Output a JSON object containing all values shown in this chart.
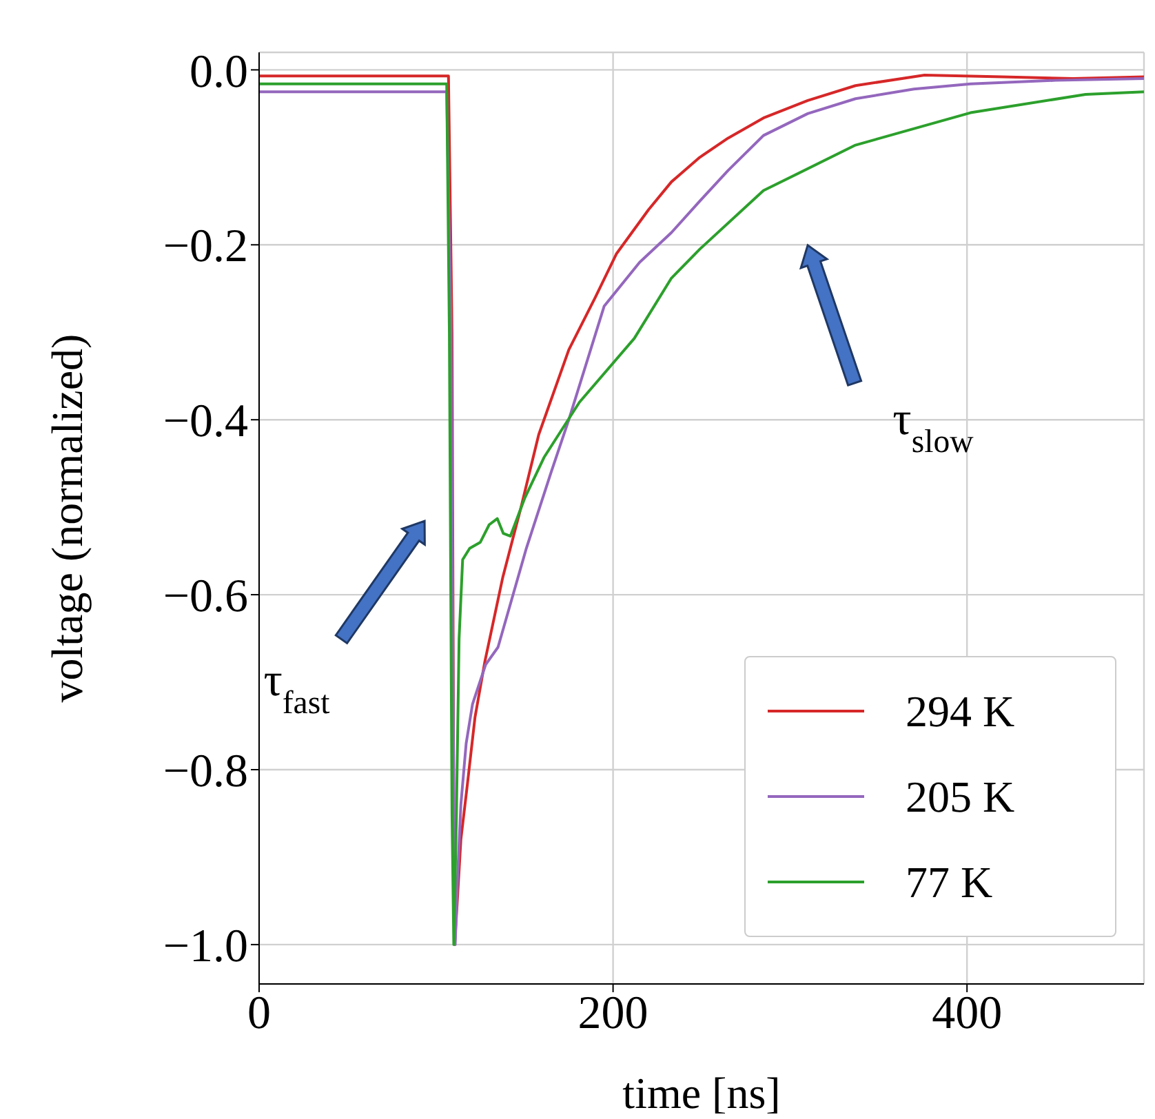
{
  "chart_data": {
    "type": "line",
    "xlabel": "time [ns]",
    "ylabel": "voltage (normalized)",
    "xlim": [
      0,
      500
    ],
    "ylim": [
      -1.045,
      0.02
    ],
    "xticks": [
      0,
      200,
      400
    ],
    "yticks": [
      {
        "value": 0,
        "label": "0.0"
      },
      {
        "value": -0.2,
        "label": "−0.2"
      },
      {
        "value": -0.4,
        "label": "−0.4"
      },
      {
        "value": -0.6,
        "label": "−0.6"
      },
      {
        "value": -0.8,
        "label": "−0.8"
      },
      {
        "value": -1,
        "label": "−1.0"
      }
    ],
    "grid": true,
    "legend": "bottom right",
    "marker": "none",
    "line_style": "solid",
    "annotations": [
      "τ$_{fast}$",
      "τ$_{slow}$"
    ],
    "series": [
      {
        "name": "294 K",
        "color": "#d62728",
        "x": [
          0,
          50,
          100,
          107,
          109,
          110,
          110.5,
          112,
          114,
          117.5,
          122,
          127.6,
          137.7,
          148,
          158,
          175,
          190,
          202,
          220,
          233,
          249,
          265,
          285,
          310,
          337,
          376,
          420,
          460,
          500
        ],
        "values": [
          -0.007,
          -0.007,
          -0.007,
          -0.007,
          -0.3,
          -0.85,
          -1.0,
          -0.95,
          -0.88,
          -0.82,
          -0.74,
          -0.676,
          -0.58,
          -0.5,
          -0.417,
          -0.32,
          -0.26,
          -0.21,
          -0.16,
          -0.128,
          -0.1,
          -0.078,
          -0.055,
          -0.035,
          -0.018,
          -0.006,
          -0.008,
          -0.01,
          -0.008
        ]
      },
      {
        "name": "205 K",
        "color": "#9467bd",
        "x": [
          0,
          50,
          100,
          106,
          108.5,
          110,
          110.8,
          112,
          114,
          117,
          120.6,
          128,
          135,
          151,
          165,
          175,
          195,
          215,
          233,
          249,
          265,
          285,
          310,
          337,
          370,
          402,
          450,
          500
        ],
        "values": [
          -0.025,
          -0.025,
          -0.025,
          -0.025,
          -0.3,
          -0.85,
          -1.0,
          -0.93,
          -0.84,
          -0.77,
          -0.725,
          -0.68,
          -0.66,
          -0.547,
          -0.46,
          -0.4,
          -0.27,
          -0.22,
          -0.186,
          -0.15,
          -0.115,
          -0.075,
          -0.05,
          -0.033,
          -0.022,
          -0.016,
          -0.012,
          -0.01
        ]
      },
      {
        "name": "77 K",
        "color": "#2ca02c",
        "x": [
          0,
          50,
          100,
          106,
          107.5,
          109,
          110,
          111.5,
          113,
          115,
          119,
          125,
          130,
          134.6,
          138,
          142,
          150,
          161,
          181,
          212,
          233,
          249,
          285,
          337,
          402,
          467,
          500
        ],
        "values": [
          -0.016,
          -0.016,
          -0.016,
          -0.016,
          -0.3,
          -0.85,
          -1.0,
          -0.85,
          -0.65,
          -0.56,
          -0.547,
          -0.54,
          -0.52,
          -0.513,
          -0.53,
          -0.533,
          -0.49,
          -0.443,
          -0.38,
          -0.307,
          -0.238,
          -0.205,
          -0.138,
          -0.086,
          -0.049,
          -0.028,
          -0.025
        ]
      }
    ]
  }
}
